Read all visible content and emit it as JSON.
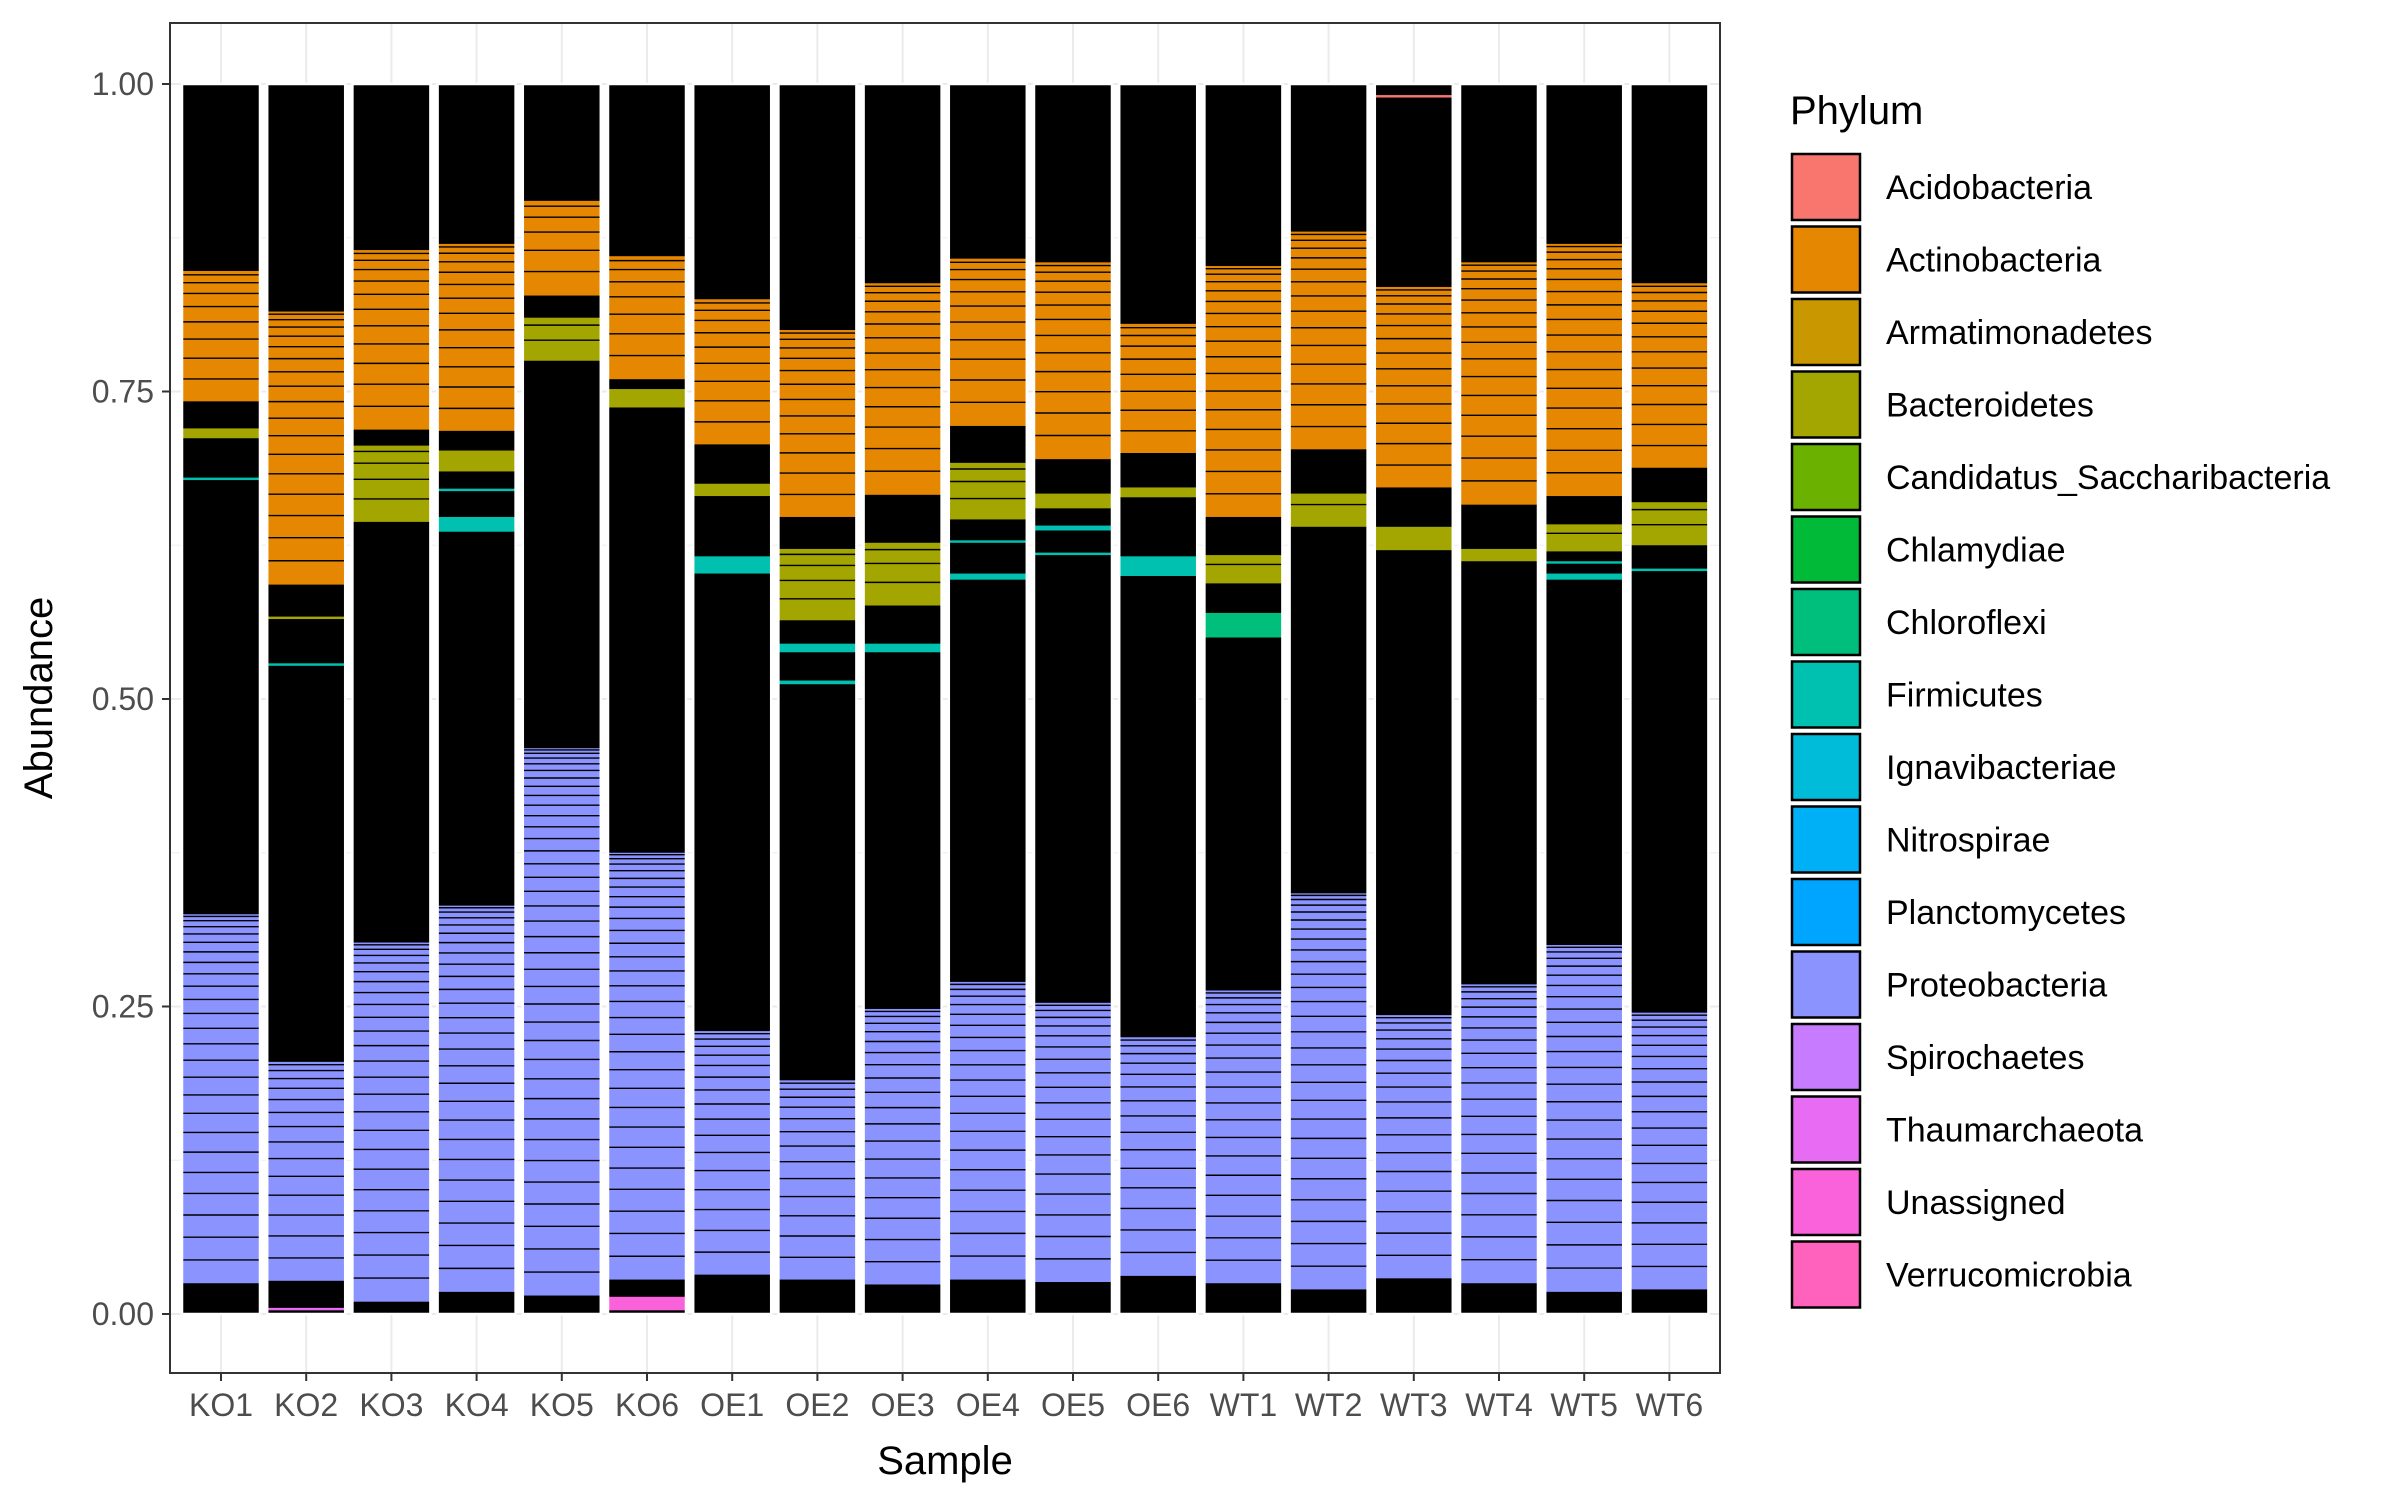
{
  "chart_data": {
    "type": "bar",
    "stacked": true,
    "xlabel": "Sample",
    "ylabel": "Abundance",
    "ylim": [
      0,
      1
    ],
    "yticks": [
      "0.00",
      "0.25",
      "0.50",
      "0.75",
      "1.00"
    ],
    "grid": true,
    "legend_position": "right",
    "legend_title": "Phylum",
    "categories": [
      "KO1",
      "KO2",
      "KO3",
      "KO4",
      "KO5",
      "KO6",
      "OE1",
      "OE2",
      "OE3",
      "OE4",
      "OE5",
      "OE6",
      "WT1",
      "WT2",
      "WT3",
      "WT4",
      "WT5",
      "WT6"
    ],
    "phyla": [
      {
        "name": "Acidobacteria",
        "color": "#F8766D"
      },
      {
        "name": "Actinobacteria",
        "color": "#E58700"
      },
      {
        "name": "Armatimonadetes",
        "color": "#C99800"
      },
      {
        "name": "Bacteroidetes",
        "color": "#A3A500"
      },
      {
        "name": "Candidatus_Saccharibacteria",
        "color": "#6BB100"
      },
      {
        "name": "Chlamydiae",
        "color": "#00BA38"
      },
      {
        "name": "Chloroflexi",
        "color": "#00BF7D"
      },
      {
        "name": "Firmicutes",
        "color": "#00C0AF"
      },
      {
        "name": "Ignavibacteriae",
        "color": "#00BCD8"
      },
      {
        "name": "Nitrospirae",
        "color": "#00B0F6"
      },
      {
        "name": "Planctomycetes",
        "color": "#00A5FF"
      },
      {
        "name": "Proteobacteria",
        "color": "#8B93FF"
      },
      {
        "name": "Spirochaetes",
        "color": "#C77CFF"
      },
      {
        "name": "Thaumarchaeota",
        "color": "#E76BF3"
      },
      {
        "name": "Unassigned",
        "color": "#FA62DB"
      },
      {
        "name": "Verrucomicrobia",
        "color": "#FF62BC"
      }
    ],
    "other_color": "#000000",
    "samples": [
      {
        "name": "KO1",
        "segments": [
          {
            "phylum": "Proteobacteria",
            "from": 0.025,
            "to": 0.325
          },
          {
            "phylum": "Firmicutes",
            "from": 0.678,
            "to": 0.68
          },
          {
            "phylum": "Bacteroidetes",
            "from": 0.712,
            "to": 0.72
          },
          {
            "phylum": "Actinobacteria",
            "from": 0.742,
            "to": 0.848
          }
        ]
      },
      {
        "name": "KO2",
        "segments": [
          {
            "phylum": "Thaumarchaeota",
            "from": 0.003,
            "to": 0.005
          },
          {
            "phylum": "Proteobacteria",
            "from": 0.027,
            "to": 0.205
          },
          {
            "phylum": "Firmicutes",
            "from": 0.527,
            "to": 0.529
          },
          {
            "phylum": "Bacteroidetes",
            "from": 0.565,
            "to": 0.567
          },
          {
            "phylum": "Actinobacteria",
            "from": 0.593,
            "to": 0.815
          }
        ]
      },
      {
        "name": "KO3",
        "segments": [
          {
            "phylum": "Proteobacteria",
            "from": 0.01,
            "to": 0.302
          },
          {
            "phylum": "Bacteroidetes",
            "from": 0.644,
            "to": 0.706
          },
          {
            "phylum": "Actinobacteria",
            "from": 0.719,
            "to": 0.865
          }
        ]
      },
      {
        "name": "KO4",
        "segments": [
          {
            "phylum": "Proteobacteria",
            "from": 0.018,
            "to": 0.332
          },
          {
            "phylum": "Firmicutes",
            "from": 0.636,
            "to": 0.648
          },
          {
            "phylum": "Firmicutes",
            "from": 0.669,
            "to": 0.671
          },
          {
            "phylum": "Bacteroidetes",
            "from": 0.685,
            "to": 0.702
          },
          {
            "phylum": "Actinobacteria",
            "from": 0.718,
            "to": 0.87
          }
        ]
      },
      {
        "name": "KO5",
        "segments": [
          {
            "phylum": "Proteobacteria",
            "from": 0.015,
            "to": 0.46
          },
          {
            "phylum": "Bacteroidetes",
            "from": 0.775,
            "to": 0.81
          },
          {
            "phylum": "Actinobacteria",
            "from": 0.828,
            "to": 0.905
          }
        ]
      },
      {
        "name": "KO6",
        "segments": [
          {
            "phylum": "Unassigned",
            "from": 0.003,
            "to": 0.014
          },
          {
            "phylum": "Proteobacteria",
            "from": 0.028,
            "to": 0.375
          },
          {
            "phylum": "Bacteroidetes",
            "from": 0.737,
            "to": 0.752
          },
          {
            "phylum": "Actinobacteria",
            "from": 0.76,
            "to": 0.86
          }
        ]
      },
      {
        "name": "OE1",
        "segments": [
          {
            "phylum": "Proteobacteria",
            "from": 0.032,
            "to": 0.23
          },
          {
            "phylum": "Firmicutes",
            "from": 0.602,
            "to": 0.616
          },
          {
            "phylum": "Bacteroidetes",
            "from": 0.665,
            "to": 0.675
          },
          {
            "phylum": "Actinobacteria",
            "from": 0.707,
            "to": 0.825
          }
        ]
      },
      {
        "name": "OE2",
        "segments": [
          {
            "phylum": "Proteobacteria",
            "from": 0.028,
            "to": 0.19
          },
          {
            "phylum": "Firmicutes",
            "from": 0.512,
            "to": 0.515
          },
          {
            "phylum": "Firmicutes",
            "from": 0.538,
            "to": 0.545
          },
          {
            "phylum": "Bacteroidetes",
            "from": 0.564,
            "to": 0.622
          },
          {
            "phylum": "Actinobacteria",
            "from": 0.648,
            "to": 0.8
          }
        ]
      },
      {
        "name": "OE3",
        "segments": [
          {
            "phylum": "Proteobacteria",
            "from": 0.024,
            "to": 0.248
          },
          {
            "phylum": "Firmicutes",
            "from": 0.538,
            "to": 0.545
          },
          {
            "phylum": "Bacteroidetes",
            "from": 0.576,
            "to": 0.627
          },
          {
            "phylum": "Actinobacteria",
            "from": 0.666,
            "to": 0.838
          }
        ]
      },
      {
        "name": "OE4",
        "segments": [
          {
            "phylum": "Proteobacteria",
            "from": 0.028,
            "to": 0.27
          },
          {
            "phylum": "Firmicutes",
            "from": 0.597,
            "to": 0.602
          },
          {
            "phylum": "Firmicutes",
            "from": 0.627,
            "to": 0.629
          },
          {
            "phylum": "Bacteroidetes",
            "from": 0.646,
            "to": 0.692
          },
          {
            "phylum": "Actinobacteria",
            "from": 0.722,
            "to": 0.858
          }
        ]
      },
      {
        "name": "OE5",
        "segments": [
          {
            "phylum": "Proteobacteria",
            "from": 0.026,
            "to": 0.253
          },
          {
            "phylum": "Firmicutes",
            "from": 0.617,
            "to": 0.619
          },
          {
            "phylum": "Firmicutes",
            "from": 0.637,
            "to": 0.641
          },
          {
            "phylum": "Bacteroidetes",
            "from": 0.655,
            "to": 0.667
          },
          {
            "phylum": "Actinobacteria",
            "from": 0.695,
            "to": 0.855
          }
        ]
      },
      {
        "name": "OE6",
        "segments": [
          {
            "phylum": "Proteobacteria",
            "from": 0.031,
            "to": 0.225
          },
          {
            "phylum": "Firmicutes",
            "from": 0.6,
            "to": 0.616
          },
          {
            "phylum": "Bacteroidetes",
            "from": 0.664,
            "to": 0.672
          },
          {
            "phylum": "Actinobacteria",
            "from": 0.7,
            "to": 0.805
          }
        ]
      },
      {
        "name": "WT1",
        "segments": [
          {
            "phylum": "Proteobacteria",
            "from": 0.025,
            "to": 0.263
          },
          {
            "phylum": "Chloroflexi",
            "from": 0.55,
            "to": 0.57
          },
          {
            "phylum": "Bacteroidetes",
            "from": 0.594,
            "to": 0.617
          },
          {
            "phylum": "Actinobacteria",
            "from": 0.648,
            "to": 0.852
          }
        ]
      },
      {
        "name": "WT2",
        "segments": [
          {
            "phylum": "Proteobacteria",
            "from": 0.02,
            "to": 0.342
          },
          {
            "phylum": "Bacteroidetes",
            "from": 0.64,
            "to": 0.667
          },
          {
            "phylum": "Actinobacteria",
            "from": 0.703,
            "to": 0.88
          }
        ]
      },
      {
        "name": "WT3",
        "segments": [
          {
            "phylum": "Proteobacteria",
            "from": 0.029,
            "to": 0.243
          },
          {
            "phylum": "Bacteroidetes",
            "from": 0.621,
            "to": 0.64
          },
          {
            "phylum": "Actinobacteria",
            "from": 0.672,
            "to": 0.835
          },
          {
            "phylum": "Acidobacteria",
            "from": 0.989,
            "to": 0.991
          }
        ]
      },
      {
        "name": "WT4",
        "segments": [
          {
            "phylum": "Proteobacteria",
            "from": 0.025,
            "to": 0.268
          },
          {
            "phylum": "Bacteroidetes",
            "from": 0.612,
            "to": 0.622
          },
          {
            "phylum": "Actinobacteria",
            "from": 0.658,
            "to": 0.855
          }
        ]
      },
      {
        "name": "WT5",
        "segments": [
          {
            "phylum": "Proteobacteria",
            "from": 0.018,
            "to": 0.3
          },
          {
            "phylum": "Firmicutes",
            "from": 0.597,
            "to": 0.602
          },
          {
            "phylum": "Firmicutes",
            "from": 0.61,
            "to": 0.612
          },
          {
            "phylum": "Bacteroidetes",
            "from": 0.62,
            "to": 0.642
          },
          {
            "phylum": "Actinobacteria",
            "from": 0.665,
            "to": 0.87
          }
        ]
      },
      {
        "name": "WT6",
        "segments": [
          {
            "phylum": "Proteobacteria",
            "from": 0.02,
            "to": 0.245
          },
          {
            "phylum": "Firmicutes",
            "from": 0.604,
            "to": 0.606
          },
          {
            "phylum": "Bacteroidetes",
            "from": 0.625,
            "to": 0.66
          },
          {
            "phylum": "Actinobacteria",
            "from": 0.688,
            "to": 0.838
          }
        ]
      }
    ]
  }
}
